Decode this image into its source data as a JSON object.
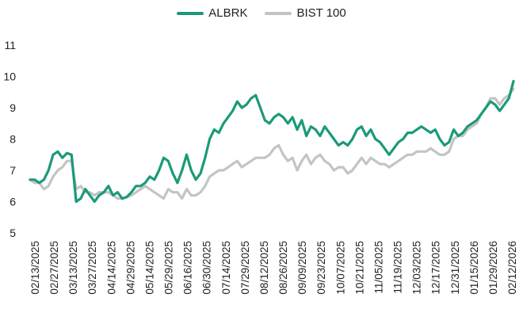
{
  "chart_data": {
    "type": "line",
    "title": "",
    "xlabel": "",
    "ylabel": "",
    "ylim": [
      5,
      11
    ],
    "y_ticks": [
      5,
      6,
      7,
      8,
      9,
      10,
      11
    ],
    "grid": false,
    "legend_position": "top-center",
    "x_tick_labels": [
      "02/13/2025",
      "02/27/2025",
      "03/13/2025",
      "03/27/2025",
      "04/14/2025",
      "04/29/2025",
      "05/14/2025",
      "05/29/2025",
      "06/16/2025",
      "06/30/2025",
      "07/14/2025",
      "07/29/2025",
      "08/12/2025",
      "08/26/2025",
      "09/09/2025",
      "09/23/2025",
      "10/07/2025",
      "10/21/2025",
      "11/05/2025",
      "11/19/2025",
      "12/03/2025",
      "12/17/2025",
      "12/31/2025",
      "01/15/2026",
      "01/29/2026",
      "02/12/2026"
    ],
    "series": [
      {
        "name": "ALBRK",
        "color": "#1a9a7a",
        "values": [
          6.7,
          6.7,
          6.6,
          6.7,
          7.0,
          7.5,
          7.6,
          7.4,
          7.55,
          7.5,
          6.0,
          6.1,
          6.4,
          6.2,
          6.0,
          6.2,
          6.3,
          6.5,
          6.2,
          6.3,
          6.1,
          6.15,
          6.3,
          6.5,
          6.5,
          6.6,
          6.8,
          6.7,
          7.0,
          7.4,
          7.3,
          6.9,
          6.6,
          7.0,
          7.5,
          7.0,
          6.7,
          6.9,
          7.4,
          8.0,
          8.3,
          8.2,
          8.5,
          8.7,
          8.9,
          9.2,
          9.0,
          9.1,
          9.3,
          9.4,
          9.0,
          8.6,
          8.5,
          8.7,
          8.8,
          8.7,
          8.5,
          8.7,
          8.3,
          8.6,
          8.1,
          8.4,
          8.3,
          8.1,
          8.4,
          8.2,
          8.0,
          7.8,
          7.9,
          7.8,
          8.0,
          8.3,
          8.4,
          8.1,
          8.3,
          8.0,
          7.9,
          7.7,
          7.5,
          7.7,
          7.9,
          8.0,
          8.2,
          8.2,
          8.3,
          8.4,
          8.3,
          8.2,
          8.3,
          8.0,
          7.8,
          7.9,
          8.3,
          8.1,
          8.2,
          8.4,
          8.5,
          8.6,
          8.8,
          9.0,
          9.2,
          9.1,
          8.9,
          9.1,
          9.3,
          9.85
        ]
      },
      {
        "name": "BIST 100",
        "color": "#c4c4c4",
        "values": [
          6.7,
          6.6,
          6.6,
          6.4,
          6.5,
          6.8,
          7.0,
          7.1,
          7.3,
          7.3,
          6.4,
          6.5,
          6.3,
          6.3,
          6.2,
          6.3,
          6.3,
          6.3,
          6.2,
          6.1,
          6.1,
          6.15,
          6.2,
          6.3,
          6.4,
          6.5,
          6.4,
          6.3,
          6.2,
          6.1,
          6.4,
          6.3,
          6.3,
          6.1,
          6.4,
          6.2,
          6.2,
          6.3,
          6.5,
          6.8,
          6.9,
          7.0,
          7.0,
          7.1,
          7.2,
          7.3,
          7.1,
          7.2,
          7.3,
          7.4,
          7.4,
          7.4,
          7.5,
          7.7,
          7.8,
          7.5,
          7.3,
          7.4,
          7.0,
          7.3,
          7.5,
          7.2,
          7.4,
          7.5,
          7.3,
          7.2,
          7.0,
          7.1,
          7.1,
          6.9,
          7.0,
          7.2,
          7.4,
          7.2,
          7.4,
          7.3,
          7.2,
          7.2,
          7.1,
          7.2,
          7.3,
          7.4,
          7.5,
          7.5,
          7.6,
          7.6,
          7.6,
          7.7,
          7.6,
          7.5,
          7.5,
          7.6,
          8.0,
          8.1,
          8.1,
          8.3,
          8.4,
          8.5,
          8.8,
          9.0,
          9.3,
          9.3,
          9.1,
          9.3,
          9.4,
          9.6
        ]
      }
    ]
  }
}
